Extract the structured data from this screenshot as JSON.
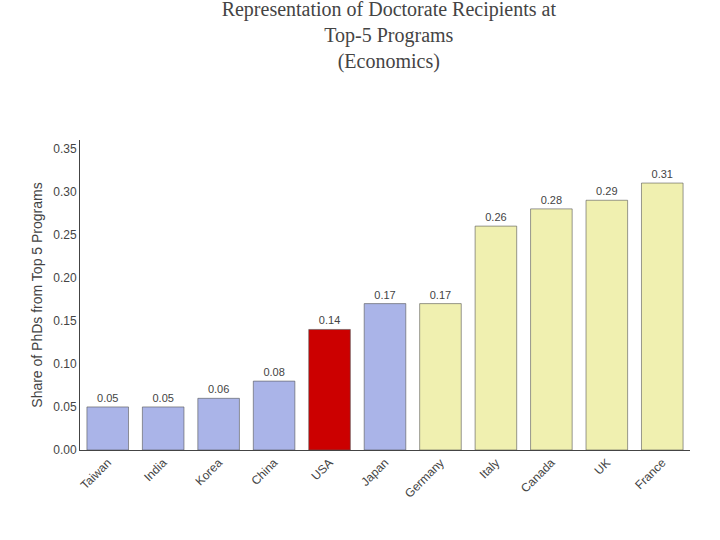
{
  "chart_data": {
    "type": "bar",
    "title": "Representation of Doctorate Recipients at\nTop-5 Programs\n(Economics)",
    "ylabel": "Share of PhDs from Top 5 Programs",
    "categories": [
      "Taiwan",
      "India",
      "Korea",
      "China",
      "USA",
      "Japan",
      "Germany",
      "Italy",
      "Canada",
      "UK",
      "France"
    ],
    "values": [
      0.05,
      0.05,
      0.06,
      0.08,
      0.14,
      0.17,
      0.17,
      0.26,
      0.28,
      0.29,
      0.31
    ],
    "colors": [
      "#aab4e8",
      "#aab4e8",
      "#aab4e8",
      "#aab4e8",
      "#cc0000",
      "#aab4e8",
      "#f0f0b0",
      "#f0f0b0",
      "#f0f0b0",
      "#f0f0b0",
      "#f0f0b0"
    ],
    "data_labels": true,
    "ylim": [
      0,
      0.36
    ],
    "yticks": [
      {
        "value": 0,
        "label": "0.00"
      },
      0.05,
      {
        "value": 0.1,
        "label": "0.10"
      },
      0.15,
      {
        "value": 0.2,
        "label": "0.20"
      },
      0.25,
      {
        "value": 0.3,
        "label": "0.30"
      },
      0.35
    ],
    "grid": false
  }
}
